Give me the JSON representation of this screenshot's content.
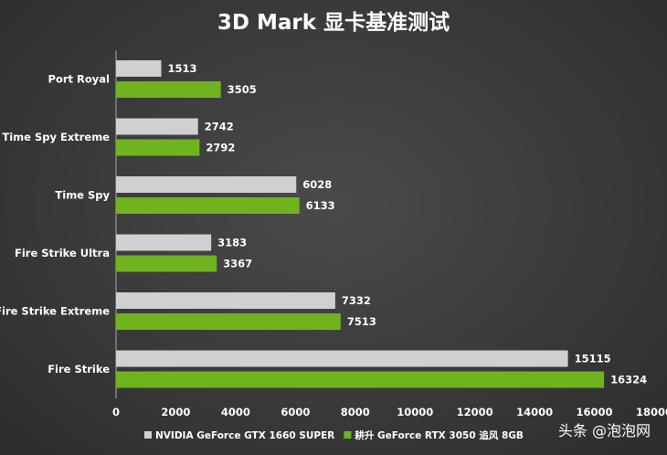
{
  "chart_data": {
    "type": "bar",
    "orientation": "horizontal",
    "title": "3D Mark 显卡基准测试",
    "categories": [
      "Port Royal",
      "Time Spy Extreme",
      "Time Spy",
      "Fire Strike Ultra",
      "Fire Strike Extreme",
      "Fire Strike"
    ],
    "series": [
      {
        "name": "NVIDIA GeForce GTX 1660 SUPER",
        "color": "#d0d0d0",
        "values": [
          1513,
          2742,
          6028,
          3183,
          7332,
          15115
        ]
      },
      {
        "name": "耕升 GeForce RTX 3050 追风 8GB",
        "color": "#6fb31f",
        "values": [
          3505,
          2792,
          6133,
          3367,
          7513,
          16324
        ]
      }
    ],
    "xlim": [
      0,
      18000
    ],
    "xticks": [
      "0",
      "2000",
      "4000",
      "6000",
      "8000",
      "10000",
      "12000",
      "14000",
      "16000",
      "18000"
    ],
    "grid": false,
    "legend_position": "bottom"
  },
  "watermark": {
    "text": "头条 @泡泡网"
  }
}
